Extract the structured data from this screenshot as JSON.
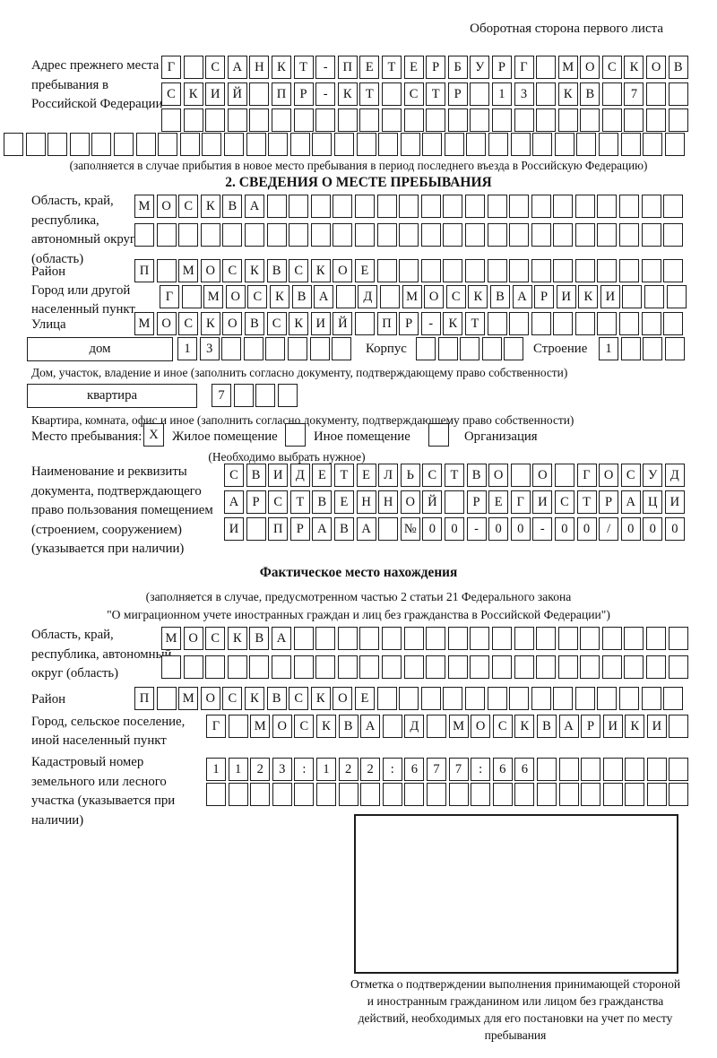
{
  "corner_note": "Оборотная сторона первого листа",
  "prev_address": {
    "label": "Адрес прежнего места пребывания в Российской Федерации",
    "row1": "Г САНКТ-ПЕТЕРБУРГ МОСКОВ",
    "row2": "СКИЙ ПР-КТ СТР 13 КВ 7",
    "row3": "",
    "row4": "",
    "note": "(заполняется в случае прибытия в новое место пребывания в период последнего въезда в Российскую Федерацию)"
  },
  "section2": {
    "title": "2. СВЕДЕНИЯ О МЕСТЕ ПРЕБЫВАНИЯ",
    "region_label": "Область, край, республика, автономный округ (область)",
    "region_row1": "МОСКВА",
    "region_row2": "",
    "district_label": "Район",
    "district_row": "П МОСКВСКОЕ",
    "city_label": "Город или другой населенный пункт",
    "city_row": "Г МОСКВА Д МОСКВАРИКИ",
    "street_label": "Улица",
    "street_row": "МОСКОВСКИЙ ПР-КТ",
    "house_box_label": "дом",
    "house_row": "13",
    "korpus_label": "Корпус",
    "korpus_row": "",
    "stroenie_label": "Строение",
    "stroenie_row": "1",
    "house_note": "Дом, участок, владение и иное (заполнить согласно документу, подтверждающему право собственности)",
    "apartment_box_label": "квартира",
    "apartment_row": "7",
    "apartment_note": "Квартира, комната, офис и иное (заполнить согласно документу, подтверждающему право собственности)",
    "stay_label": "Место пребывания:",
    "stay_checked_mark": "X",
    "stay_option1": "Жилое помещение",
    "stay_option2": "Иное помещение",
    "stay_option3": "Организация",
    "stay_note": "(Необходимо выбрать нужное)",
    "doc_label": "Наименование и реквизиты документа, подтверждающего право пользования помещением (строением, сооружением) (указывается при наличии)",
    "doc_row1": "СВИДЕТЕЛЬСТВО О ГОСУД",
    "doc_row2": "АРСТВЕННОЙ РЕГИСТРАЦИ",
    "doc_row3": "И ПРАВА №00-00-00/000"
  },
  "actual": {
    "title": "Фактическое место нахождения",
    "note_line1": "(заполняется в случае, предусмотренном частью 2 статьи 21 Федерального закона",
    "note_line2": "\"О миграционном учете иностранных граждан и лиц без гражданства в Российской Федерации\")",
    "region_label": "Область, край, республика, автономный округ (область)",
    "region_row1": "МОСКВА",
    "region_row2": "",
    "district_label": "Район",
    "district_row": "П МОСКВСКОЕ",
    "city_label": "Город, сельское поселение, иной населенный пункт",
    "city_row": "Г МОСКВА Д МОСКВАРИКИ",
    "cadastral_label": "Кадастровый номер земельного или лесного участка (указывается при наличии)",
    "cadastral_row1": "1123:122:677:66",
    "cadastral_row2": "",
    "stamp_caption": "Отметка о подтверждении выполнения принимающей стороной и иностранным гражданином или лицом без гражданства действий, необходимых для его постановки на учет по месту пребывания"
  }
}
